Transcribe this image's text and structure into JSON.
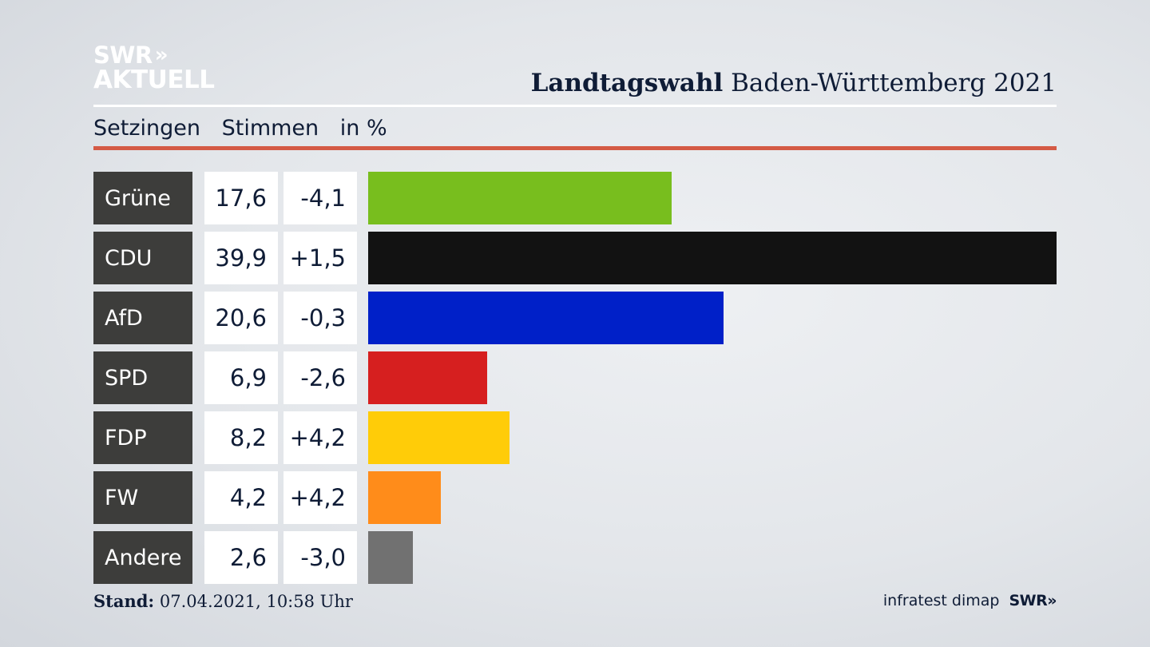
{
  "logo": {
    "line1": "SWR",
    "line2": "AKTUELL",
    "chevrons": "»"
  },
  "header": {
    "title_bold": "Landtagswahl",
    "title_rest": "Baden-Württemberg 2021"
  },
  "subheader": {
    "place": "Setzingen",
    "metric": "Stimmen",
    "unit": "in %"
  },
  "chart_data": {
    "type": "bar",
    "orientation": "horizontal",
    "categories": [
      "Grüne",
      "CDU",
      "AfD",
      "SPD",
      "FDP",
      "FW",
      "Andere"
    ],
    "values": [
      17.6,
      39.9,
      20.6,
      6.9,
      8.2,
      4.2,
      2.6
    ],
    "values_label": [
      "17,6",
      "39,9",
      "20,6",
      "6,9",
      "8,2",
      "4,2",
      "2,6"
    ],
    "changes_label": [
      "-4,1",
      "+1,5",
      "-0,3",
      "-2,6",
      "+4,2",
      "+4,2",
      "-3,0"
    ],
    "colors": [
      "#78be1e",
      "#121212",
      "#0020c8",
      "#d61f1f",
      "#ffcc08",
      "#ff8c1a",
      "#717171"
    ],
    "xlim": [
      0,
      39.9
    ]
  },
  "footer": {
    "stand_label": "Stand:",
    "stand_value": "07.04.2021, 10:58 Uhr",
    "source": "infratest dimap",
    "brand": "SWR»"
  },
  "colors": {
    "accent_rule": "#d45a45",
    "text": "#0f1c36",
    "party_box": "#3d3d3b"
  }
}
